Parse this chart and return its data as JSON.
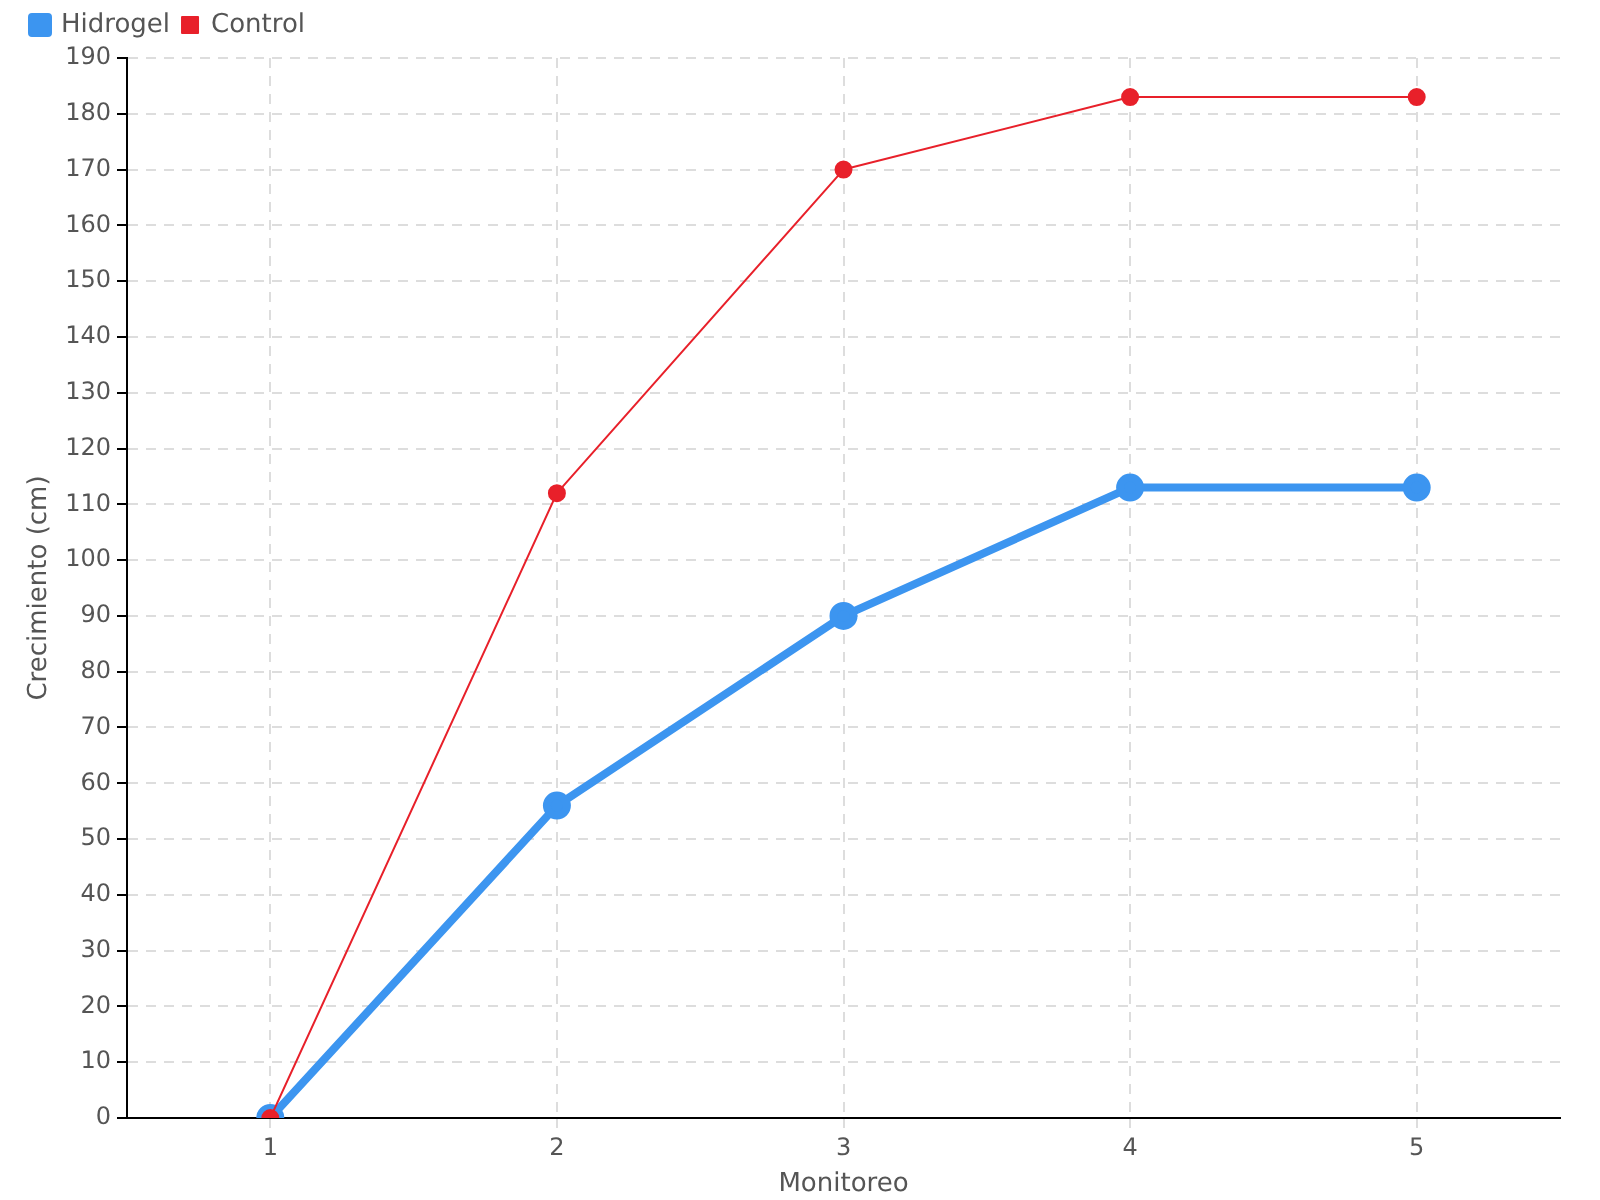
{
  "chart_data": {
    "type": "line",
    "xlabel": "Monitoreo",
    "ylabel": "Crecimiento (cm)",
    "categories": [
      "1",
      "2",
      "3",
      "4",
      "5"
    ],
    "series": [
      {
        "name": "Hidrogel",
        "color": "#3c95f0",
        "values": [
          0,
          56,
          90,
          113,
          113
        ]
      },
      {
        "name": "Control",
        "color": "#e8202a",
        "values": [
          0,
          112,
          170,
          183,
          183
        ]
      }
    ],
    "ylim": [
      0,
      190
    ],
    "yticks": [
      0,
      10,
      20,
      30,
      40,
      50,
      60,
      70,
      80,
      90,
      100,
      110,
      120,
      130,
      140,
      150,
      160,
      170,
      180,
      190
    ],
    "grid": true,
    "legend": "top left",
    "marker": "circle",
    "line_style": "solid"
  }
}
